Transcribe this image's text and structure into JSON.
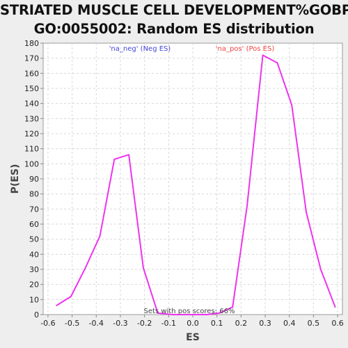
{
  "chart_data": {
    "type": "line",
    "title_line1": "STRIATED MUSCLE CELL DEVELOPMENT%GOBP%",
    "title_line2": "GO:0055002: Random ES distribution",
    "xlabel": "ES",
    "ylabel": "P(ES)",
    "xlim": [
      -0.62,
      0.62
    ],
    "ylim": [
      0,
      180
    ],
    "xticks": [
      -0.6,
      -0.5,
      -0.4,
      -0.3,
      -0.2,
      -0.1,
      0.0,
      0.1,
      0.2,
      0.3,
      0.4,
      0.5,
      0.6
    ],
    "xtick_labels": [
      "-0.6",
      "-0.5",
      "-0.4",
      "-0.3",
      "-0.2",
      "-0.1",
      "0.0",
      "0.1",
      "0.2",
      "0.3",
      "0.4",
      "0.5",
      "0.6"
    ],
    "yticks": [
      0,
      10,
      20,
      30,
      40,
      50,
      60,
      70,
      80,
      90,
      100,
      110,
      120,
      130,
      140,
      150,
      160,
      170,
      180
    ],
    "grid": true,
    "line_color": "#ee33ee",
    "legend": [
      {
        "label": "'na_neg' (Neg ES)",
        "color": "#4444dd"
      },
      {
        "label": "'na_pos' (Pos ES)",
        "color": "#ee4444"
      }
    ],
    "annotation": "Sets with pos scores: 66%",
    "series": [
      {
        "x": [
          -0.565,
          -0.505,
          -0.445,
          -0.385,
          -0.325,
          -0.265,
          -0.205,
          -0.145,
          -0.085,
          0.0,
          0.06,
          0.11,
          0.165,
          0.225,
          0.29,
          0.35,
          0.41,
          0.47,
          0.53,
          0.59
        ],
        "y": [
          6,
          12,
          31,
          52,
          103,
          106,
          31,
          1,
          0,
          0,
          0,
          1,
          5,
          72,
          172,
          167,
          139,
          68,
          30,
          5
        ]
      }
    ]
  }
}
